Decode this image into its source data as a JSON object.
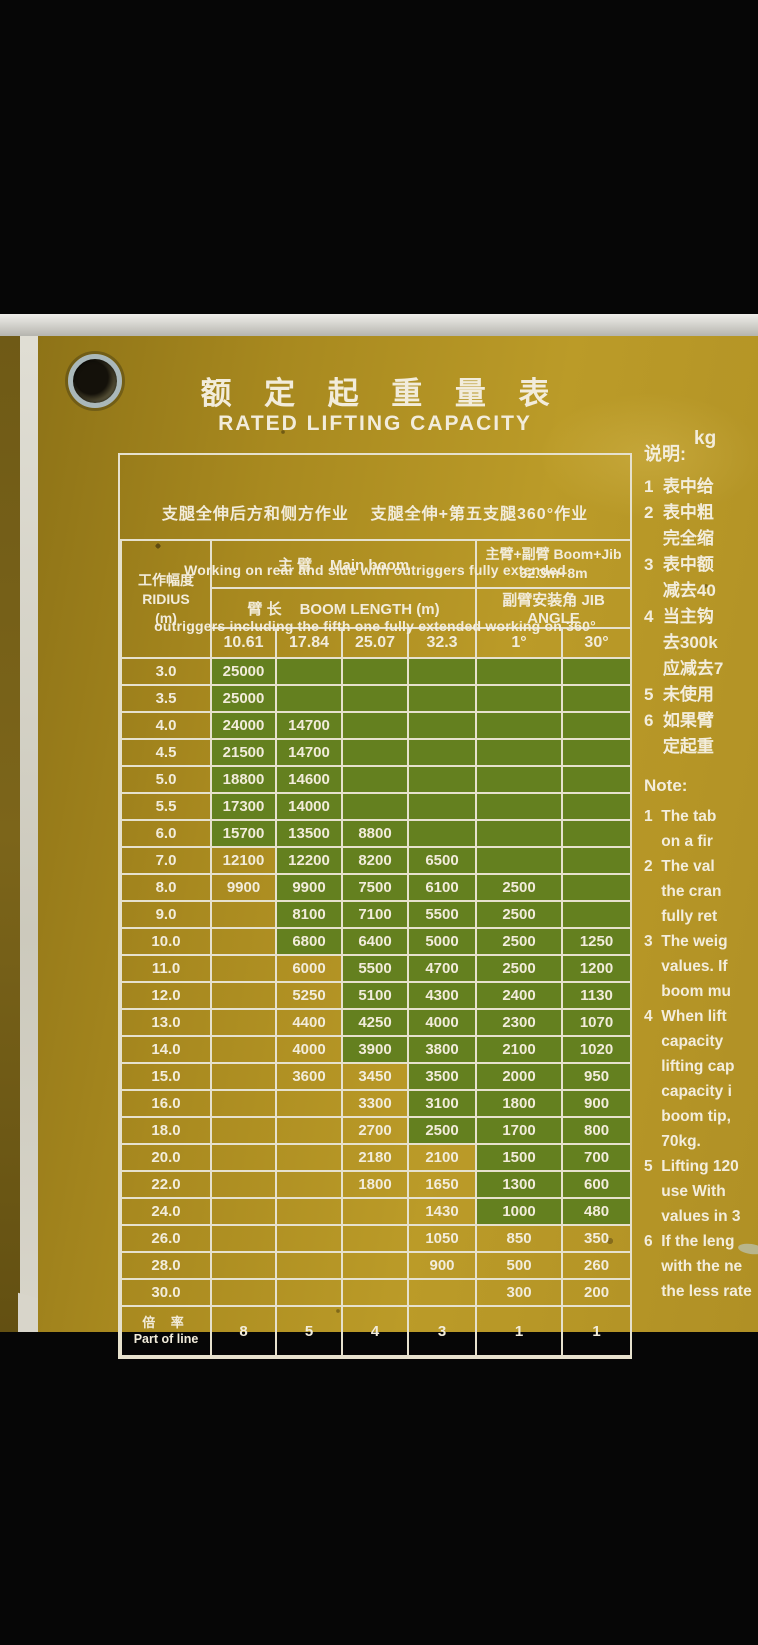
{
  "unit": "kg",
  "title": {
    "zh": "额 定 起 重 量 表",
    "en": "RATED LIFTING CAPACITY"
  },
  "statement": {
    "zh": "支腿全伸后方和侧方作业    支腿全伸+第五支腿360°作业",
    "en1": "Working on rear and side with outriggers fully extended",
    "en2": "outriggers including the fifth one fully extended working on 360°"
  },
  "table": {
    "radius_zh": "工作幅度",
    "radius_en": "RIDIUS",
    "radius_unit": "(m)",
    "main_boom_zh": "主    臂",
    "main_boom_en": "Main boom",
    "boom_length_zh": "臂    长",
    "boom_length_en": "BOOM LENGTH (m)",
    "boom_jib_zh": "主臂+副臂",
    "boom_jib_en": "Boom+Jib",
    "boom_jib_spec": "32.3m+8m",
    "jib_angle_zh": "副臂安装角",
    "jib_angle_en": "JIB ANGLE",
    "boom_lengths": [
      "10.61",
      "17.84",
      "25.07",
      "32.3"
    ],
    "jib_angles": [
      "1°",
      "30°"
    ],
    "rows": [
      {
        "r": "3.0",
        "v": [
          "25000",
          "",
          "",
          "",
          "",
          ""
        ],
        "g": [
          1,
          1,
          1,
          1,
          1,
          1
        ]
      },
      {
        "r": "3.5",
        "v": [
          "25000",
          "",
          "",
          "",
          "",
          ""
        ],
        "g": [
          1,
          1,
          1,
          1,
          1,
          1
        ]
      },
      {
        "r": "4.0",
        "v": [
          "24000",
          "14700",
          "",
          "",
          "",
          ""
        ],
        "g": [
          1,
          1,
          1,
          1,
          1,
          1
        ]
      },
      {
        "r": "4.5",
        "v": [
          "21500",
          "14700",
          "",
          "",
          "",
          ""
        ],
        "g": [
          1,
          1,
          1,
          1,
          1,
          1
        ]
      },
      {
        "r": "5.0",
        "v": [
          "18800",
          "14600",
          "",
          "",
          "",
          ""
        ],
        "g": [
          1,
          1,
          1,
          1,
          1,
          1
        ]
      },
      {
        "r": "5.5",
        "v": [
          "17300",
          "14000",
          "",
          "",
          "",
          ""
        ],
        "g": [
          1,
          1,
          1,
          1,
          1,
          1
        ]
      },
      {
        "r": "6.0",
        "v": [
          "15700",
          "13500",
          "8800",
          "",
          "",
          ""
        ],
        "g": [
          1,
          1,
          1,
          1,
          1,
          1
        ]
      },
      {
        "r": "7.0",
        "v": [
          "12100",
          "12200",
          "8200",
          "6500",
          "",
          ""
        ],
        "g": [
          0,
          1,
          1,
          1,
          1,
          1
        ]
      },
      {
        "r": "8.0",
        "v": [
          "9900",
          "9900",
          "7500",
          "6100",
          "2500",
          ""
        ],
        "g": [
          0,
          1,
          1,
          1,
          1,
          1
        ]
      },
      {
        "r": "9.0",
        "v": [
          "",
          "8100",
          "7100",
          "5500",
          "2500",
          ""
        ],
        "g": [
          0,
          1,
          1,
          1,
          1,
          1
        ]
      },
      {
        "r": "10.0",
        "v": [
          "",
          "6800",
          "6400",
          "5000",
          "2500",
          "1250"
        ],
        "g": [
          0,
          1,
          1,
          1,
          1,
          1
        ]
      },
      {
        "r": "11.0",
        "v": [
          "",
          "6000",
          "5500",
          "4700",
          "2500",
          "1200"
        ],
        "g": [
          0,
          0,
          1,
          1,
          1,
          1
        ]
      },
      {
        "r": "12.0",
        "v": [
          "",
          "5250",
          "5100",
          "4300",
          "2400",
          "1130"
        ],
        "g": [
          0,
          0,
          1,
          1,
          1,
          1
        ]
      },
      {
        "r": "13.0",
        "v": [
          "",
          "4400",
          "4250",
          "4000",
          "2300",
          "1070"
        ],
        "g": [
          0,
          0,
          1,
          1,
          1,
          1
        ]
      },
      {
        "r": "14.0",
        "v": [
          "",
          "4000",
          "3900",
          "3800",
          "2100",
          "1020"
        ],
        "g": [
          0,
          0,
          1,
          1,
          1,
          1
        ]
      },
      {
        "r": "15.0",
        "v": [
          "",
          "3600",
          "3450",
          "3500",
          "2000",
          "950"
        ],
        "g": [
          0,
          0,
          0,
          1,
          1,
          1
        ]
      },
      {
        "r": "16.0",
        "v": [
          "",
          "",
          "3300",
          "3100",
          "1800",
          "900"
        ],
        "g": [
          0,
          0,
          0,
          1,
          1,
          1
        ]
      },
      {
        "r": "18.0",
        "v": [
          "",
          "",
          "2700",
          "2500",
          "1700",
          "800"
        ],
        "g": [
          0,
          0,
          0,
          1,
          1,
          1
        ]
      },
      {
        "r": "20.0",
        "v": [
          "",
          "",
          "2180",
          "2100",
          "1500",
          "700"
        ],
        "g": [
          0,
          0,
          0,
          0,
          1,
          1
        ]
      },
      {
        "r": "22.0",
        "v": [
          "",
          "",
          "1800",
          "1650",
          "1300",
          "600"
        ],
        "g": [
          0,
          0,
          0,
          0,
          1,
          1
        ]
      },
      {
        "r": "24.0",
        "v": [
          "",
          "",
          "",
          "1430",
          "1000",
          "480"
        ],
        "g": [
          0,
          0,
          0,
          0,
          1,
          1
        ]
      },
      {
        "r": "26.0",
        "v": [
          "",
          "",
          "",
          "1050",
          "850",
          "350"
        ],
        "g": [
          0,
          0,
          0,
          0,
          0,
          0
        ]
      },
      {
        "r": "28.0",
        "v": [
          "",
          "",
          "",
          "900",
          "500",
          "260"
        ],
        "g": [
          0,
          0,
          0,
          0,
          0,
          0
        ]
      },
      {
        "r": "30.0",
        "v": [
          "",
          "",
          "",
          "",
          "300",
          "200"
        ],
        "g": [
          0,
          0,
          0,
          0,
          0,
          0
        ]
      }
    ],
    "part_of_line_zh": "倍  率",
    "part_of_line_en": "Part of line",
    "part_of_line_values": [
      "8",
      "5",
      "4",
      "3",
      "1",
      "1"
    ]
  },
  "notes_zh": {
    "heading": "说明:",
    "lines": [
      "1  表中给",
      "2  表中粗",
      "    完全缩",
      "3  表中额",
      "    减去40",
      "4  当主钩",
      "    去300k",
      "    应减去7",
      "5  未使用",
      "6  如果臂",
      "    定起重"
    ]
  },
  "notes_en": {
    "heading": "Note:",
    "lines": [
      "1  The tab",
      "    on a fir",
      "2  The val",
      "    the cran",
      "    fully ret",
      "3  The weig",
      "    values. If",
      "    boom mu",
      "4  When lift",
      "    capacity",
      "    lifting cap",
      "    capacity i",
      "    boom tip,",
      "    70kg.",
      "5  Lifting 120",
      "    use With",
      "    values in 3",
      "6  If the leng",
      "    with the ne",
      "    the less rate"
    ]
  },
  "colors": {
    "plate": "#ab8c22",
    "green_cell": "#64801f",
    "grid_line": "#e6e1cd",
    "background": "#060606"
  }
}
